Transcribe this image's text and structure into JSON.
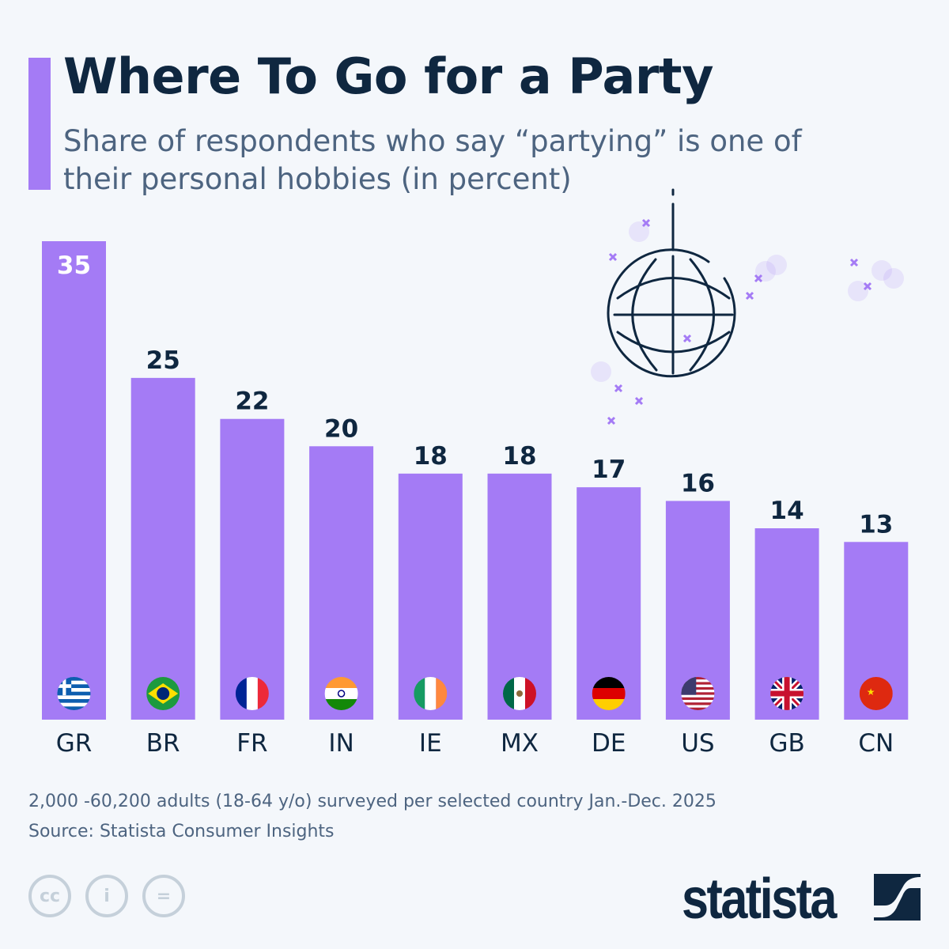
{
  "header": {
    "title": "Where To Go for a Party",
    "subtitle": "Share of respondents who say “partying” is one of their personal hobbies (in percent)"
  },
  "chart_data": {
    "type": "bar",
    "categories": [
      "GR",
      "BR",
      "FR",
      "IN",
      "IE",
      "MX",
      "DE",
      "US",
      "GB",
      "CN"
    ],
    "values": [
      35,
      25,
      22,
      20,
      18,
      18,
      17,
      16,
      14,
      13
    ],
    "ylim": [
      0,
      35
    ],
    "grid": false,
    "bar_color": "#a47bf5",
    "flags": [
      "greece-flag",
      "brazil-flag",
      "france-flag",
      "india-flag",
      "ireland-flag",
      "mexico-flag",
      "germany-flag",
      "usa-flag",
      "uk-flag",
      "china-flag"
    ]
  },
  "footer": {
    "note": "2,000 -60,200 adults (18-64 y/o) surveyed per selected country Jan.-Dec. 2025",
    "source": "Source: Statista Consumer Insights",
    "cc_icons": [
      "cc-icon",
      "by-icon",
      "nd-icon"
    ],
    "logo": "statista"
  },
  "colors": {
    "title": "#0f2740",
    "accent": "#a47bf5",
    "background": "#f4f7fb"
  }
}
